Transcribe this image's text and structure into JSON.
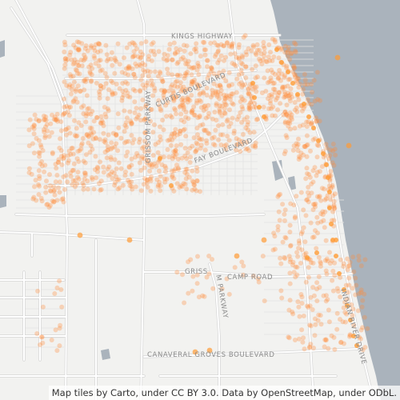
{
  "map": {
    "base_color": "#f2f2f0",
    "water_color": "#aab3bc",
    "road_color": "#ffffff",
    "road_casing": "#d6d6d6",
    "point_color": "#ff8c3c",
    "point_core": "#ff9b35",
    "road_labels": {
      "kings": "KINGS HIGHWAY",
      "curtis": "CURTIS BOULEVARD",
      "grissom": "GRISSOM PARKWAY",
      "fay": "FAY BOULEVARD",
      "grissom_south_a": "GRISS",
      "grissom_south_b": "M PARKWAY",
      "camp": "CAMP ROAD",
      "canaveral": "CANAVERAL GROVES BOULEVARD",
      "indian": "INDIAN RIVER DRIVE"
    }
  },
  "attribution": "Map tiles by Carto, under CC BY 3.0. Data by OpenStreetMap, under ODbL."
}
